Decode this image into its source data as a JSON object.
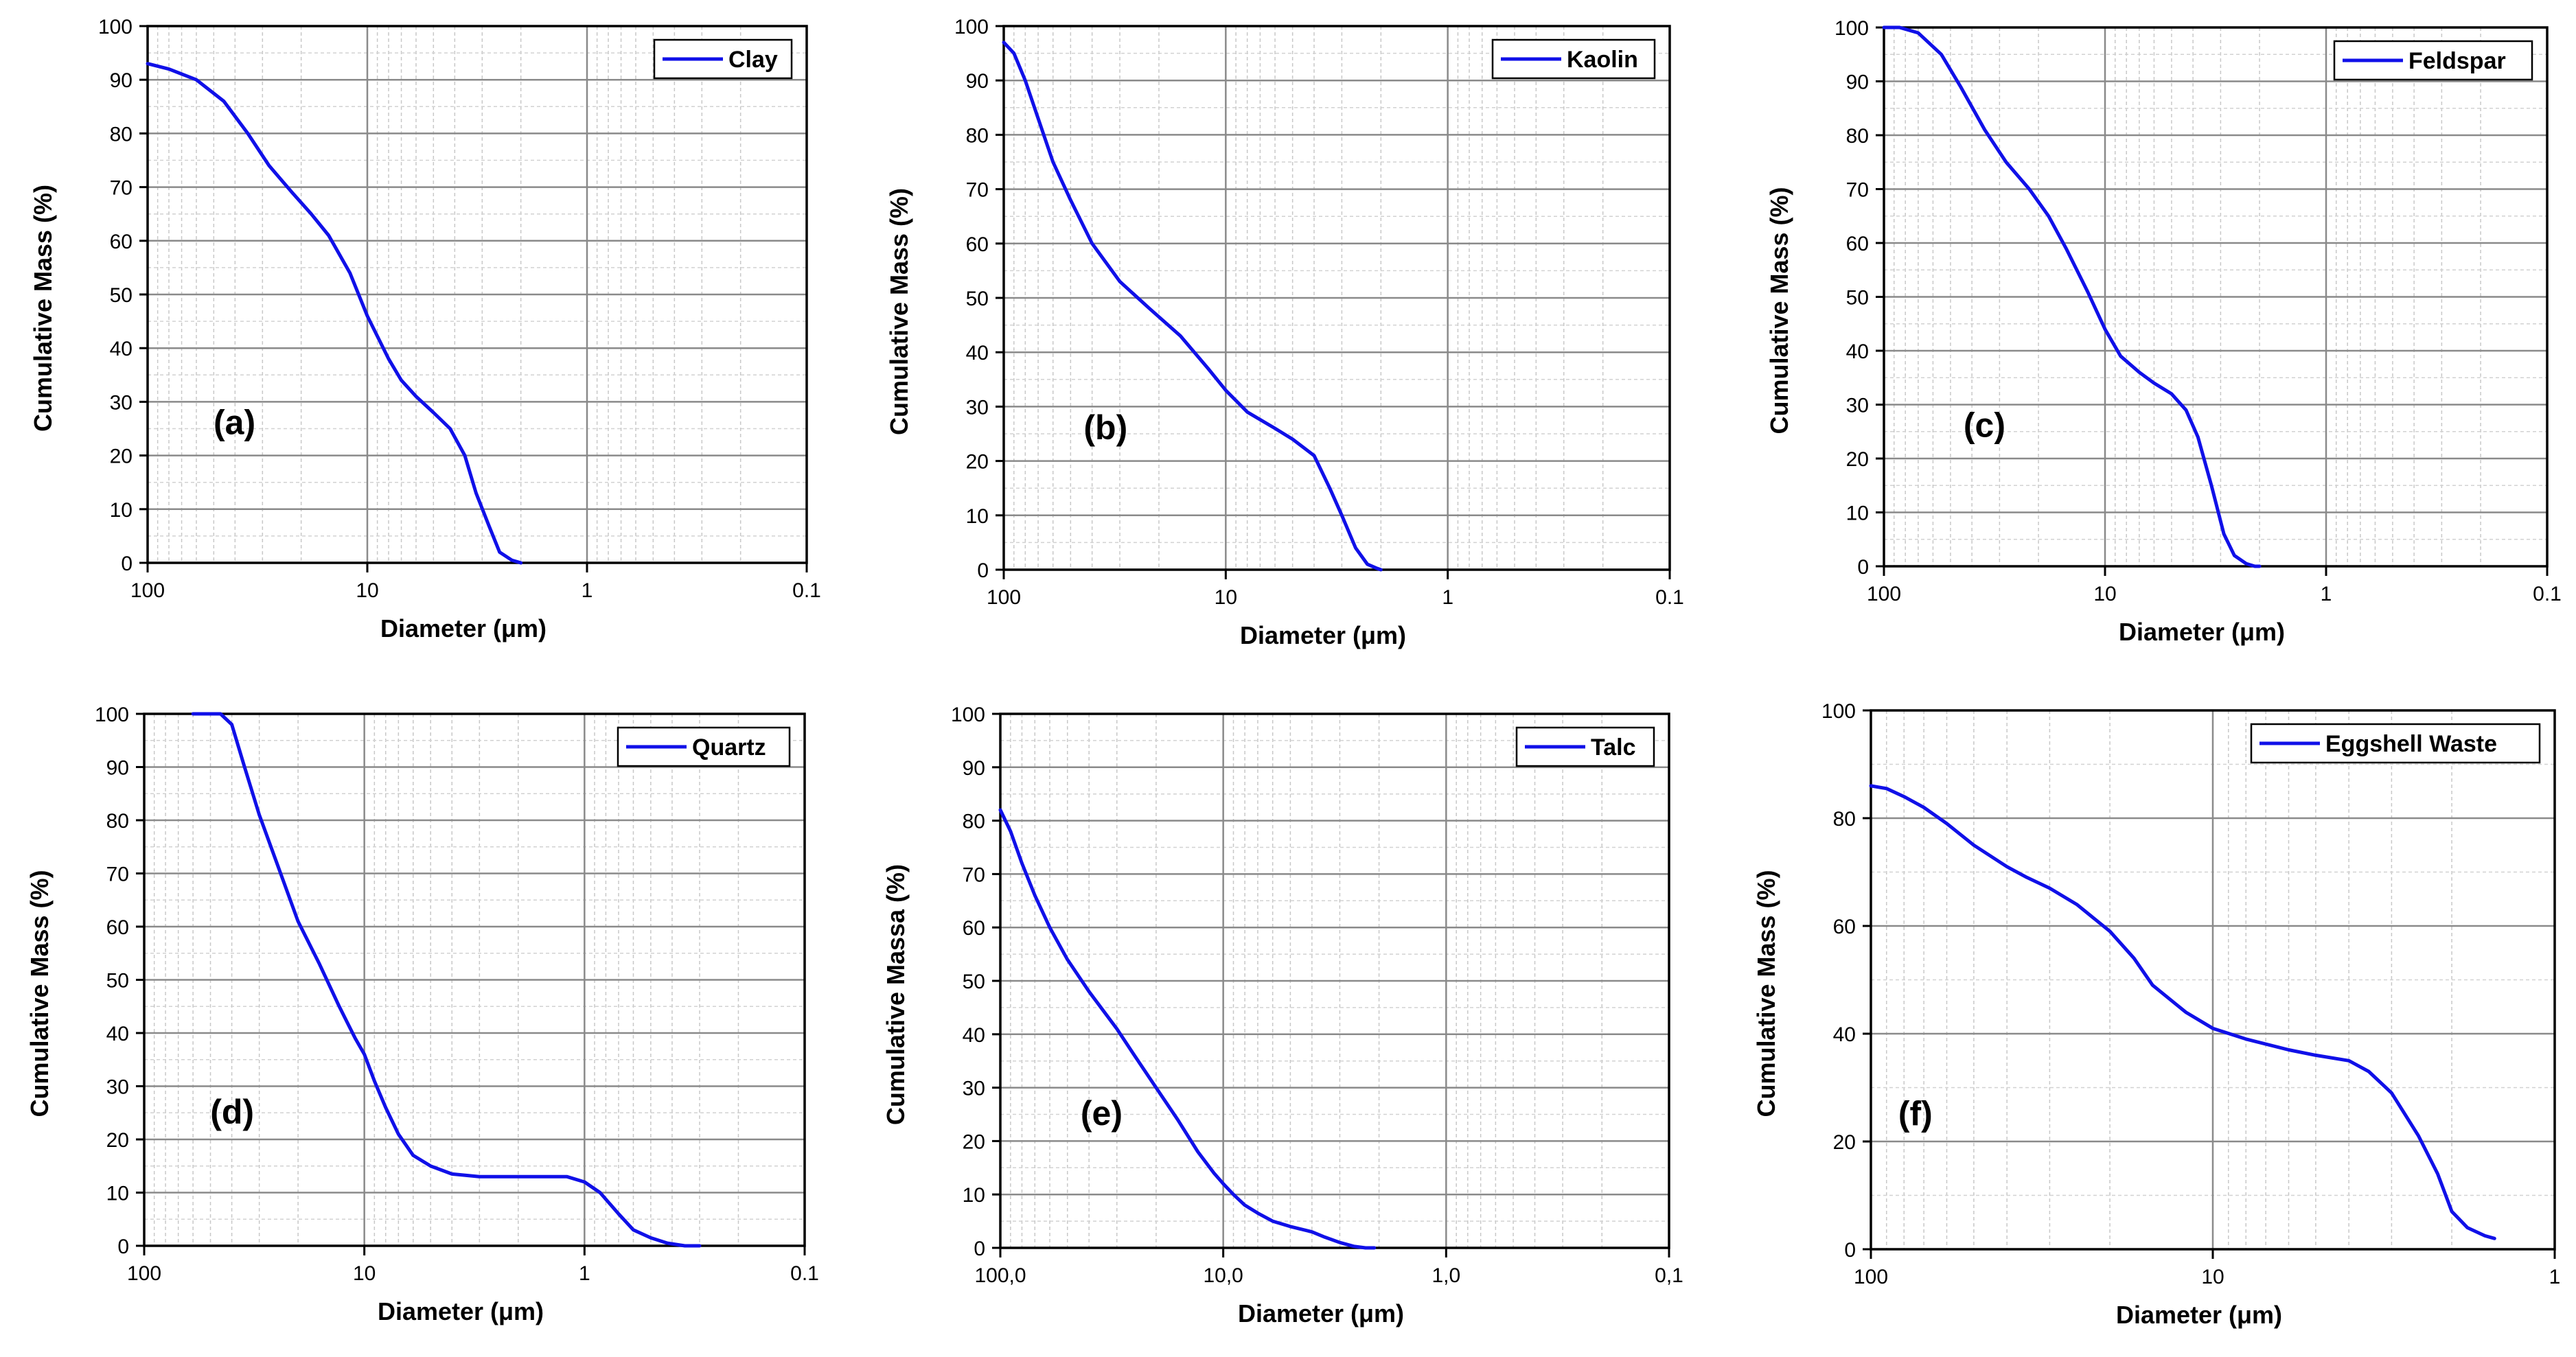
{
  "chart_data": [
    {
      "type": "line",
      "panel_label": "(a)",
      "xlabel": "Diameter (μm)",
      "ylabel": "Cumulative Mass (%)",
      "x_scale": "log",
      "x_reversed": true,
      "xlim": [
        100,
        0.1
      ],
      "ylim": [
        0,
        100
      ],
      "x_ticks": [
        100,
        10,
        1,
        0.1
      ],
      "x_tick_labels": [
        "100",
        "10",
        "1",
        "0.1"
      ],
      "y_ticks": [
        0,
        10,
        20,
        30,
        40,
        50,
        60,
        70,
        80,
        90,
        100
      ],
      "y_tick_labels": [
        "0",
        "10",
        "20",
        "30",
        "40",
        "50",
        "60",
        "70",
        "80",
        "90",
        "100"
      ],
      "grid": true,
      "legend_position": "top-right",
      "series": [
        {
          "name": "Clay",
          "color": "#1010e8",
          "x": [
            100,
            80,
            60,
            45,
            35,
            28,
            22,
            18,
            15,
            12,
            10,
            8,
            7,
            6,
            5,
            4.2,
            3.6,
            3.2,
            2.8,
            2.5,
            2.2,
            2
          ],
          "y": [
            93,
            92,
            90,
            86,
            80,
            74,
            69,
            65,
            61,
            54,
            46,
            38,
            34,
            31,
            28,
            25,
            20,
            13,
            7,
            2,
            0.5,
            0
          ]
        }
      ]
    },
    {
      "type": "line",
      "panel_label": "(b)",
      "xlabel": "Diameter (μm)",
      "ylabel": "Cumulative Mass (%)",
      "x_scale": "log",
      "x_reversed": true,
      "xlim": [
        100,
        0.1
      ],
      "ylim": [
        0,
        100
      ],
      "x_ticks": [
        100,
        10,
        1,
        0.1
      ],
      "x_tick_labels": [
        "100",
        "10",
        "1",
        "0.1"
      ],
      "y_ticks": [
        0,
        10,
        20,
        30,
        40,
        50,
        60,
        70,
        80,
        90,
        100
      ],
      "y_tick_labels": [
        "0",
        "10",
        "20",
        "30",
        "40",
        "50",
        "60",
        "70",
        "80",
        "90",
        "100"
      ],
      "grid": true,
      "legend_position": "top-right",
      "series": [
        {
          "name": "Kaolin",
          "color": "#1010e8",
          "x": [
            100,
            90,
            80,
            70,
            60,
            50,
            40,
            30,
            22,
            16,
            12,
            10,
            8,
            6,
            5,
            4,
            3.4,
            3,
            2.6,
            2.3,
            2.1,
            2
          ],
          "y": [
            97,
            95,
            90,
            83,
            75,
            68,
            60,
            53,
            48,
            43,
            37,
            33,
            29,
            26,
            24,
            21,
            15,
            10,
            4,
            1,
            0.3,
            0
          ]
        }
      ]
    },
    {
      "type": "line",
      "panel_label": "(c)",
      "xlabel": "Diameter (μm)",
      "ylabel": "Cumulative Mass (%)",
      "x_scale": "log",
      "x_reversed": true,
      "xlim": [
        100,
        0.1
      ],
      "ylim": [
        0,
        100
      ],
      "x_ticks": [
        100,
        10,
        1,
        0.1
      ],
      "x_tick_labels": [
        "100",
        "10",
        "1",
        "0.1"
      ],
      "y_ticks": [
        0,
        10,
        20,
        30,
        40,
        50,
        60,
        70,
        80,
        90,
        100
      ],
      "y_tick_labels": [
        "0",
        "10",
        "20",
        "30",
        "40",
        "50",
        "60",
        "70",
        "80",
        "90",
        "100"
      ],
      "grid": true,
      "legend_position": "top-right",
      "series": [
        {
          "name": "Feldspar",
          "color": "#1010e8",
          "x": [
            100,
            85,
            70,
            55,
            45,
            35,
            28,
            22,
            18,
            15,
            12,
            10,
            8.5,
            7,
            6,
            5,
            4.3,
            3.8,
            3.3,
            2.9,
            2.6,
            2.3,
            2.1,
            2
          ],
          "y": [
            100,
            100,
            99,
            95,
            89,
            81,
            75,
            70,
            65,
            59,
            51,
            44,
            39,
            36,
            34,
            32,
            29,
            24,
            15,
            6,
            2,
            0.5,
            0,
            0
          ]
        }
      ]
    },
    {
      "type": "line",
      "panel_label": "(d)",
      "xlabel": "Diameter (μm)",
      "ylabel": "Cumulative Mass (%)",
      "x_scale": "log",
      "x_reversed": true,
      "xlim": [
        100,
        0.1
      ],
      "ylim": [
        0,
        100
      ],
      "x_ticks": [
        100,
        10,
        1,
        0.1
      ],
      "x_tick_labels": [
        "100",
        "10",
        "1",
        "0.1"
      ],
      "y_ticks": [
        0,
        10,
        20,
        30,
        40,
        50,
        60,
        70,
        80,
        90,
        100
      ],
      "y_tick_labels": [
        "0",
        "10",
        "20",
        "30",
        "40",
        "50",
        "60",
        "70",
        "80",
        "90",
        "100"
      ],
      "grid": true,
      "legend_position": "top-right",
      "series": [
        {
          "name": "Quartz",
          "color": "#1010e8",
          "x": [
            60,
            50,
            45,
            40,
            35,
            30,
            25,
            20,
            16,
            13,
            11,
            10,
            9,
            8,
            7,
            6,
            5,
            4,
            3,
            2,
            1.5,
            1.2,
            1.0,
            0.85,
            0.7,
            0.6,
            0.5,
            0.42,
            0.35,
            0.3
          ],
          "y": [
            100,
            100,
            100,
            98,
            90,
            81,
            72,
            61,
            53,
            45,
            39,
            36,
            31,
            26,
            21,
            17,
            15,
            13.5,
            13,
            13,
            13,
            13,
            12,
            10,
            6,
            3,
            1.5,
            0.5,
            0,
            0
          ]
        }
      ]
    },
    {
      "type": "line",
      "panel_label": "(e)",
      "xlabel": "Diameter (μm)",
      "ylabel": "Cumulative Massa (%)",
      "x_scale": "log",
      "x_reversed": true,
      "xlim": [
        100,
        0.1
      ],
      "ylim": [
        0,
        100
      ],
      "x_ticks": [
        100,
        10,
        1,
        0.1
      ],
      "x_tick_labels": [
        "100,0",
        "10,0",
        "1,0",
        "0,1"
      ],
      "y_ticks": [
        0,
        10,
        20,
        30,
        40,
        50,
        60,
        70,
        80,
        90,
        100
      ],
      "y_tick_labels": [
        "0",
        "10",
        "20",
        "30",
        "40",
        "50",
        "60",
        "70",
        "80",
        "90",
        "100"
      ],
      "grid": true,
      "legend_position": "top-right",
      "series": [
        {
          "name": "Talc",
          "color": "#1010e8",
          "x": [
            100,
            90,
            80,
            70,
            60,
            50,
            40,
            30,
            25,
            20,
            16,
            13,
            11,
            10,
            9,
            8,
            7,
            6,
            5,
            4,
            3.5,
            3,
            2.6,
            2.3,
            2.1
          ],
          "y": [
            82,
            78,
            72,
            66,
            60,
            54,
            48,
            41,
            36,
            30,
            24,
            18,
            14,
            12,
            10,
            8,
            6.5,
            5,
            4,
            3,
            2,
            1,
            0.3,
            0,
            0
          ]
        }
      ]
    },
    {
      "type": "line",
      "panel_label": "(f)",
      "xlabel": "Diameter (μm)",
      "ylabel": "Cumulative Mass (%)",
      "x_scale": "log",
      "x_reversed": true,
      "xlim": [
        100,
        1
      ],
      "ylim": [
        0,
        100
      ],
      "x_ticks": [
        100,
        10,
        1
      ],
      "x_tick_labels": [
        "100",
        "10",
        "1"
      ],
      "y_ticks": [
        0,
        20,
        40,
        60,
        80,
        100
      ],
      "y_tick_labels": [
        "0",
        "20",
        "40",
        "60",
        "80",
        "100"
      ],
      "grid": true,
      "legend_position": "top-right",
      "series": [
        {
          "name": "Eggshell Waste",
          "color": "#1010e8",
          "x": [
            100,
            90,
            80,
            70,
            60,
            50,
            40,
            35,
            30,
            25,
            20,
            17,
            15,
            12,
            10,
            8,
            6,
            5,
            4,
            3.5,
            3,
            2.5,
            2.2,
            2,
            1.8,
            1.6,
            1.5
          ],
          "y": [
            86,
            85.5,
            84,
            82,
            79,
            75,
            71,
            69,
            67,
            64,
            59,
            54,
            49,
            44,
            41,
            39,
            37,
            36,
            35,
            33,
            29,
            21,
            14,
            7,
            4,
            2.5,
            2
          ]
        }
      ]
    }
  ]
}
